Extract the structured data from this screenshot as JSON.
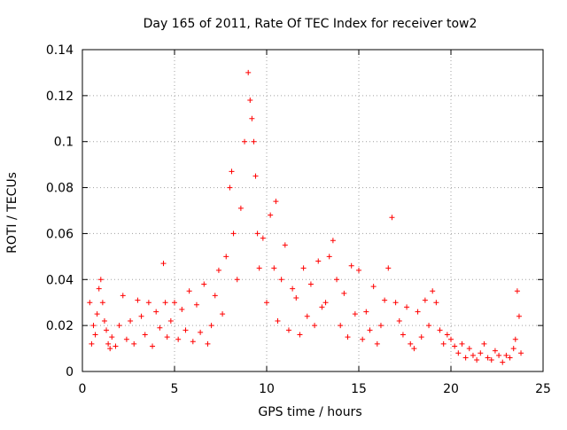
{
  "chart_data": {
    "type": "scatter",
    "title": "Day 165 of 2011, Rate Of TEC Index for receiver tow2",
    "xlabel": "GPS time / hours",
    "ylabel": "ROTI / TECUs",
    "xlim": [
      0,
      25
    ],
    "ylim": [
      0,
      0.14
    ],
    "x_ticks": [
      "0",
      "5",
      "10",
      "15",
      "20",
      "25"
    ],
    "y_ticks": [
      "0",
      "0.02",
      "0.04",
      "0.06",
      "0.08",
      "0.1",
      "0.12",
      "0.14"
    ],
    "grid": true,
    "marker": "+",
    "color": "#ff0000",
    "series": [
      {
        "x": [
          0.4,
          0.5,
          0.6,
          0.7,
          0.8,
          0.9,
          1.0,
          1.1,
          1.2,
          1.3,
          1.4,
          1.5,
          1.6,
          1.8,
          2.0,
          2.2,
          2.4,
          2.6,
          2.8,
          3.0,
          3.2,
          3.4,
          3.6,
          3.8,
          4.0,
          4.2,
          4.4,
          4.5,
          4.6,
          4.8,
          5.0,
          5.2,
          5.4,
          5.6,
          5.8,
          6.0,
          6.2,
          6.4,
          6.6,
          6.8,
          7.0,
          7.2,
          7.4,
          7.6,
          7.8,
          8.0,
          8.1,
          8.2,
          8.4,
          8.6,
          8.8,
          9.0,
          9.1,
          9.2,
          9.3,
          9.4,
          9.5,
          9.6,
          9.8,
          10.0,
          10.2,
          10.4,
          10.5,
          10.6,
          10.8,
          11.0,
          11.2,
          11.4,
          11.6,
          11.8,
          12.0,
          12.2,
          12.4,
          12.6,
          12.8,
          13.0,
          13.2,
          13.4,
          13.6,
          13.8,
          14.0,
          14.2,
          14.4,
          14.6,
          14.8,
          15.0,
          15.2,
          15.4,
          15.6,
          15.8,
          16.0,
          16.2,
          16.4,
          16.6,
          16.8,
          17.0,
          17.2,
          17.4,
          17.6,
          17.8,
          18.0,
          18.2,
          18.4,
          18.6,
          18.8,
          19.0,
          19.2,
          19.4,
          19.6,
          19.8,
          20.0,
          20.2,
          20.4,
          20.6,
          20.8,
          21.0,
          21.2,
          21.4,
          21.6,
          21.8,
          22.0,
          22.2,
          22.4,
          22.6,
          22.8,
          23.0,
          23.2,
          23.4,
          23.5,
          23.6,
          23.7,
          23.8
        ],
        "y": [
          0.03,
          0.012,
          0.02,
          0.016,
          0.025,
          0.036,
          0.04,
          0.03,
          0.022,
          0.018,
          0.012,
          0.01,
          0.015,
          0.011,
          0.02,
          0.033,
          0.014,
          0.022,
          0.012,
          0.031,
          0.024,
          0.016,
          0.03,
          0.011,
          0.026,
          0.019,
          0.047,
          0.03,
          0.015,
          0.022,
          0.03,
          0.014,
          0.027,
          0.018,
          0.035,
          0.013,
          0.029,
          0.017,
          0.038,
          0.012,
          0.02,
          0.033,
          0.044,
          0.025,
          0.05,
          0.08,
          0.087,
          0.06,
          0.04,
          0.071,
          0.1,
          0.13,
          0.118,
          0.11,
          0.1,
          0.085,
          0.06,
          0.045,
          0.058,
          0.03,
          0.068,
          0.045,
          0.074,
          0.022,
          0.04,
          0.055,
          0.018,
          0.036,
          0.032,
          0.016,
          0.045,
          0.024,
          0.038,
          0.02,
          0.048,
          0.028,
          0.03,
          0.05,
          0.057,
          0.04,
          0.02,
          0.034,
          0.015,
          0.046,
          0.025,
          0.044,
          0.014,
          0.026,
          0.018,
          0.037,
          0.012,
          0.02,
          0.031,
          0.045,
          0.067,
          0.03,
          0.022,
          0.016,
          0.028,
          0.012,
          0.01,
          0.026,
          0.015,
          0.031,
          0.02,
          0.035,
          0.03,
          0.018,
          0.012,
          0.016,
          0.014,
          0.011,
          0.008,
          0.012,
          0.006,
          0.01,
          0.007,
          0.005,
          0.008,
          0.012,
          0.006,
          0.005,
          0.009,
          0.007,
          0.004,
          0.007,
          0.006,
          0.01,
          0.014,
          0.035,
          0.024,
          0.008
        ]
      }
    ]
  }
}
